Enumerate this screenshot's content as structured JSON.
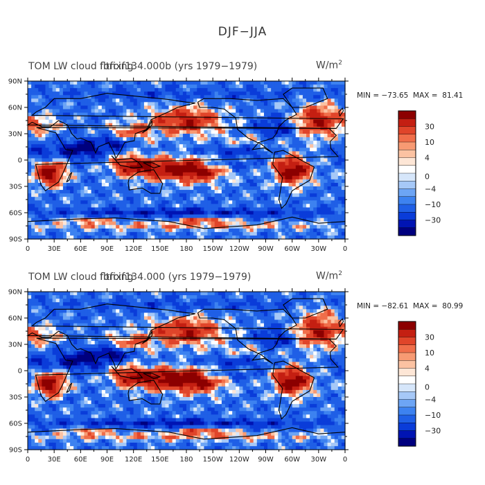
{
  "figure_title": "DJF−JJA",
  "units_base": "W/m",
  "units_sup": "2",
  "palette": [
    "#00007f",
    "#0014b3",
    "#0a3cd9",
    "#1f5fe6",
    "#3d82f0",
    "#6da5f5",
    "#a6c8f7",
    "#d6e6fa",
    "#ffffff",
    "#fde6d6",
    "#fbc2a2",
    "#f79a73",
    "#f06e4a",
    "#e0452a",
    "#c41f12",
    "#8c0000"
  ],
  "panels": [
    {
      "title_line_a": "TOM LW cloud forcing",
      "title_line_b": "fltfixf134.000b (yrs 1979−1979)",
      "min_max": "MIN = −73.65  MAX =  81.41",
      "variant": 0
    },
    {
      "title_line_a": "TOM LW cloud forcing",
      "title_line_b": "fltfixf134.000 (yrs 1979−1979)",
      "min_max": "MIN = −82.61  MAX =  80.99",
      "variant": 1
    }
  ],
  "lat_labels": [
    "90N",
    "60N",
    "30N",
    "0",
    "30S",
    "60S",
    "90S"
  ],
  "lon_labels": [
    "0",
    "30E",
    "60E",
    "90E",
    "120E",
    "150E",
    "180",
    "150W",
    "120W",
    "90W",
    "60W",
    "30W",
    "0"
  ],
  "colorbar_labels": [
    "30",
    "10",
    "4",
    "0",
    "−4",
    "−10",
    "−30"
  ]
}
